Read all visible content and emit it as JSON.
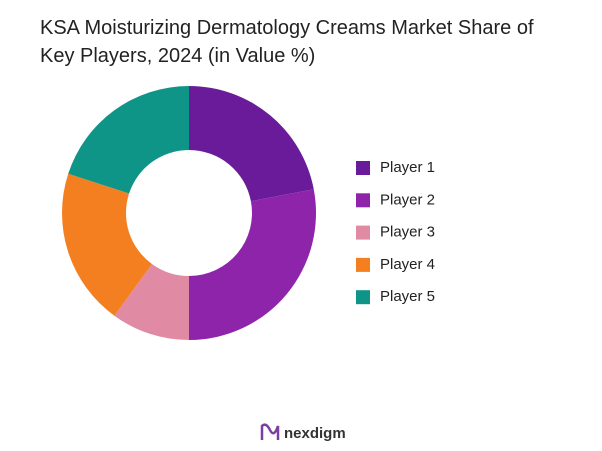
{
  "chart_data": {
    "type": "donut",
    "title": "KSA Moisturizing Dermatology Creams Market Share of Key Players, 2024 (in Value %)",
    "categories": [
      "Player 1",
      "Player 2",
      "Player 3",
      "Player 4",
      "Player 5"
    ],
    "values": [
      22,
      28,
      10,
      20,
      20
    ],
    "colors": [
      "#6a1b9a",
      "#8e24aa",
      "#e08aa4",
      "#f47f20",
      "#0f9488"
    ],
    "legend": "right"
  },
  "brand": "nexdigm"
}
